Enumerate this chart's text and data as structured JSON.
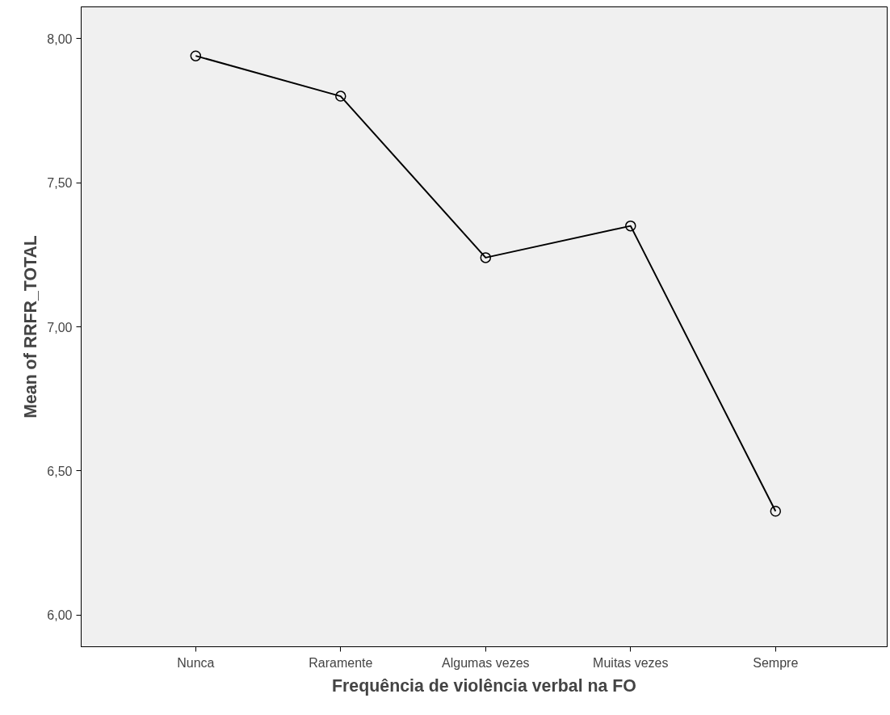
{
  "chart_data": {
    "type": "line",
    "xlabel": "Frequência de violência verbal na FO",
    "ylabel": "Mean of RRFR_TOTAL",
    "categories": [
      "Nunca",
      "Raramente",
      "Algumas vezes",
      "Muitas vezes",
      "Sempre"
    ],
    "series": [
      {
        "color": "#000000",
        "values": [
          7.94,
          7.8,
          7.24,
          7.35,
          6.36
        ]
      }
    ],
    "ylim": [
      5.89,
      8.11
    ],
    "yticks": [
      {
        "value": 6,
        "label": "6,00"
      },
      {
        "value": 6.5,
        "label": "6,50"
      },
      {
        "value": 7,
        "label": "7,00"
      },
      {
        "value": 7.5,
        "label": "7,50"
      },
      {
        "value": 8,
        "label": "8,00"
      }
    ],
    "grid": false,
    "marker": "circle",
    "line_style": "solid"
  }
}
